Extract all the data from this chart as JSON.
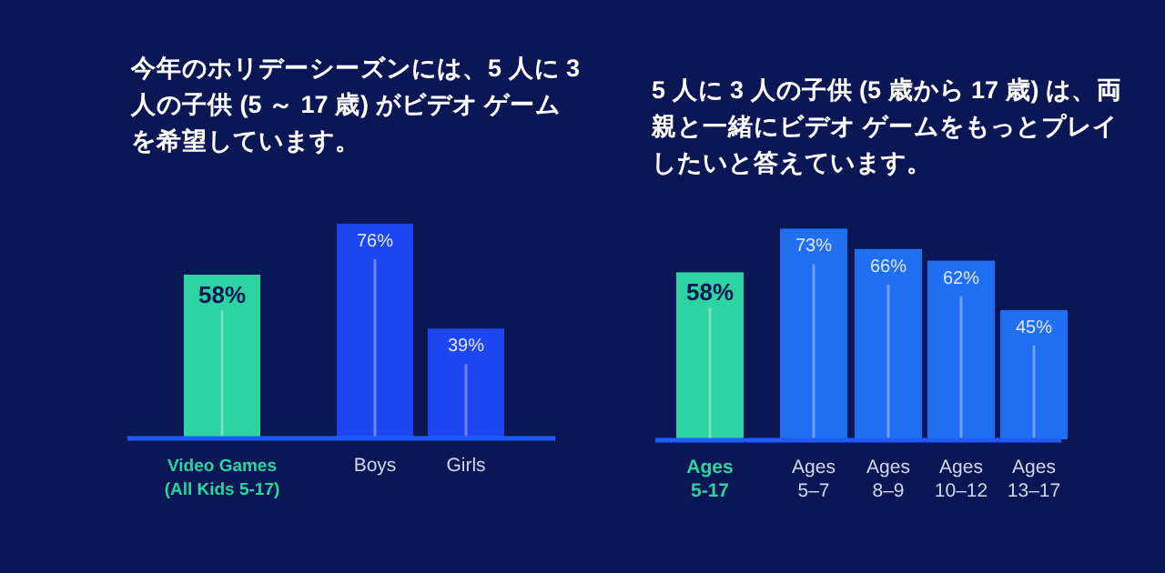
{
  "chart_data": [
    {
      "type": "bar",
      "title": "今年のホリデーシーズンには、5 人に 3 人の子供 (5 ～ 17 歳) がビデオ ゲームを希望しています。",
      "categories": [
        "Video Games\n(All Kids 5-17)",
        "Boys",
        "Girls"
      ],
      "values": [
        58,
        76,
        39
      ],
      "value_labels": [
        "58%",
        "76%",
        "39%"
      ],
      "colors": [
        "#2ed3a2",
        "#1d45f0",
        "#1d45f0"
      ]
    },
    {
      "type": "bar",
      "title": "5 人に 3 人の子供 (5 歳から 17 歳) は、両親と一緒にビデオ ゲームをもっとプレイしたいと答えています。",
      "categories": [
        "Ages\n5-17",
        "Ages\n5–7",
        "Ages\n8–9",
        "Ages\n10–12",
        "Ages\n13–17"
      ],
      "values": [
        58,
        73,
        66,
        62,
        45
      ],
      "value_labels": [
        "58%",
        "73%",
        "66%",
        "62%",
        "45%"
      ],
      "colors": [
        "#2ed3a2",
        "#1f6ff0",
        "#1f6ff0",
        "#1f6ff0",
        "#1f6ff0"
      ]
    }
  ]
}
